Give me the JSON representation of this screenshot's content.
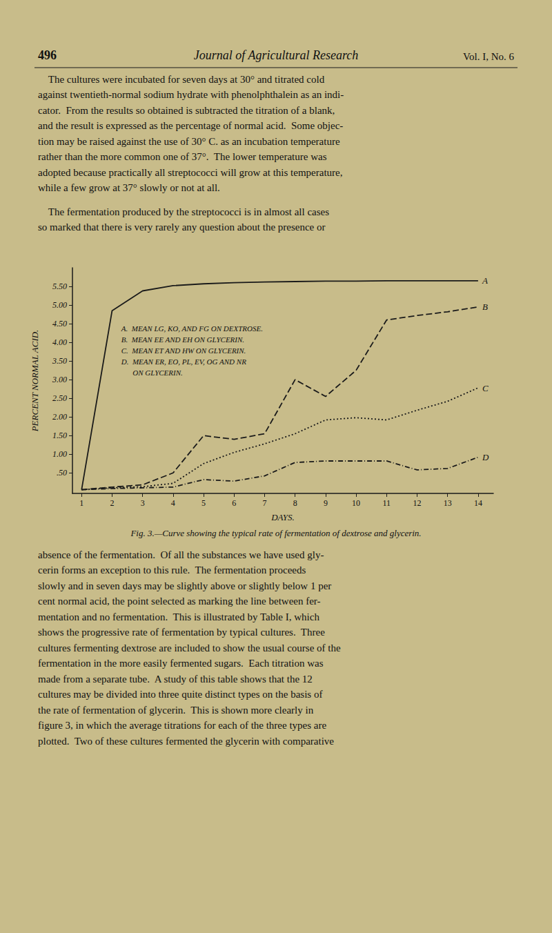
{
  "page": {
    "background_color": "#c8bc8a",
    "font_color": "#111111",
    "line_color": "#1a1a1a",
    "header_left": "496",
    "header_center": "Journal of Agricultural Research",
    "header_right": "Vol. I, No. 6",
    "body_text1_lines": [
      "    The cultures were incubated for seven days at 30° and titrated cold",
      "against twentieth-normal sodium hydrate with phenolphthalein as an indi-",
      "cator.  From the results so obtained is subtracted the titration of a blank,",
      "and the result is expressed as the percentage of normal acid.  Some objec-",
      "tion may be raised against the use of 30° C. as an incubation temperature",
      "rather than the more common one of 37°.  The lower temperature was",
      "adopted because practically all streptococci will grow at this temperature,",
      "while a few grow at 37° slowly or not at all."
    ],
    "body_text2_lines": [
      "    The fermentation produced by the streptococci is in almost all cases",
      "so marked that there is very rarely any question about the presence or"
    ],
    "body_text3_lines": [
      "absence of the fermentation.  Of all the substances we have used gly-",
      "cerin forms an exception to this rule.  The fermentation proceeds",
      "slowly and in seven days may be slightly above or slightly below 1 per",
      "cent normal acid, the point selected as marking the line between fer-",
      "mentation and no fermentation.  This is illustrated by Table I, which",
      "shows the progressive rate of fermentation by typical cultures.  Three",
      "cultures fermenting dextrose are included to show the usual course of the",
      "fermentation in the more easily fermented sugars.  Each titration was",
      "made from a separate tube.  A study of this table shows that the 12",
      "cultures may be divided into three quite distinct types on the basis of",
      "the rate of fermentation of glycerin.  This is shown more clearly in",
      "figure 3, in which the average titrations for each of the three types are",
      "plotted.  Two of these cultures fermented the glycerin with comparative"
    ]
  },
  "chart_data": {
    "type": "line",
    "caption": "Fig. 3.—Curve showing the typical rate of fermentation of dextrose and glycerin.",
    "xlabel": "DAYS.",
    "ylabel": "PERCENT NORMAL ACID.",
    "grid": false,
    "x": [
      1,
      2,
      3,
      4,
      5,
      6,
      7,
      8,
      9,
      10,
      11,
      12,
      13,
      14
    ],
    "xlim": [
      0.7,
      14.5
    ],
    "xticks": [
      1,
      2,
      3,
      4,
      5,
      6,
      7,
      8,
      9,
      10,
      11,
      12,
      13,
      14
    ],
    "ylim": [
      -0.05,
      6.0
    ],
    "yticks": [
      {
        "value": 0.5,
        "label": ".50"
      },
      {
        "value": 1.0,
        "label": "1.00"
      },
      {
        "value": 1.5,
        "label": "1.50"
      },
      {
        "value": 2.0,
        "label": "2.00"
      },
      {
        "value": 2.5,
        "label": "2.50"
      },
      {
        "value": 3.0,
        "label": "3.00"
      },
      {
        "value": 3.5,
        "label": "3.50"
      },
      {
        "value": 4.0,
        "label": "4.00"
      },
      {
        "value": 4.5,
        "label": "4.50"
      },
      {
        "value": 5.0,
        "label": "5.00"
      },
      {
        "value": 5.5,
        "label": "5.50"
      }
    ],
    "series": [
      {
        "name": "A",
        "color": "#1a1a1a",
        "line_style": "solid",
        "values": [
          0.05,
          4.85,
          5.38,
          5.52,
          5.57,
          5.6,
          5.62,
          5.63,
          5.64,
          5.64,
          5.65,
          5.65,
          5.65,
          5.65
        ]
      },
      {
        "name": "B",
        "color": "#1a1a1a",
        "line_style": "dashed",
        "values": [
          0.05,
          0.12,
          0.18,
          0.5,
          1.5,
          1.4,
          1.55,
          3.0,
          2.55,
          3.25,
          4.6,
          4.72,
          4.82,
          4.95
        ]
      },
      {
        "name": "C",
        "color": "#1a1a1a",
        "line_style": "dotted",
        "values": [
          0.05,
          0.1,
          0.13,
          0.22,
          0.75,
          1.05,
          1.28,
          1.55,
          1.92,
          1.98,
          1.92,
          2.18,
          2.42,
          2.78
        ]
      },
      {
        "name": "D",
        "color": "#1a1a1a",
        "line_style": "dashdot",
        "values": [
          0.05,
          0.08,
          0.1,
          0.12,
          0.32,
          0.28,
          0.42,
          0.78,
          0.82,
          0.82,
          0.82,
          0.58,
          0.62,
          0.92
        ]
      }
    ],
    "annotations": [
      "A.  MEAN LG, KO, AND FG ON DEXTROSE.",
      "B.  MEAN EE AND EH ON GLYCERIN.",
      "C.  MEAN ET AND HW ON GLYCERIN.",
      "D.  MEAN ER, EO, PL, EV, OG AND NR",
      "      ON GLYCERIN."
    ]
  }
}
